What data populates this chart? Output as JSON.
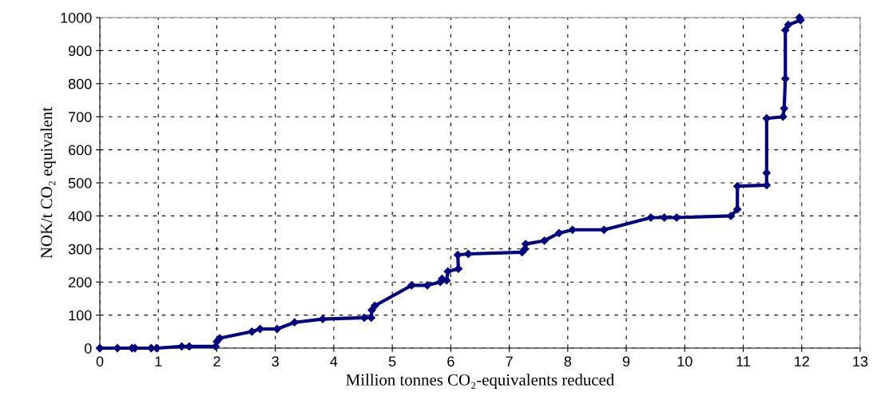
{
  "chart_data": {
    "type": "line",
    "xlabel": "Million tonnes CO₂-equivalents reduced",
    "ylabel": "NOK/t CO₂ equivalent",
    "xlim": [
      0,
      13
    ],
    "ylim": [
      0,
      1000
    ],
    "xticks": [
      0,
      1,
      2,
      3,
      4,
      5,
      6,
      7,
      8,
      9,
      10,
      11,
      12,
      13
    ],
    "yticks": [
      0,
      100,
      200,
      300,
      400,
      500,
      600,
      700,
      800,
      900,
      1000
    ],
    "grid": true,
    "marker": "diamond",
    "line_style": "solid",
    "series": [
      {
        "color": "#000080",
        "x": [
          0,
          0.3,
          0.55,
          0.6,
          0.88,
          0.97,
          1.4,
          1.53,
          1.98,
          2.0,
          2.05,
          2.6,
          2.74,
          3.03,
          3.33,
          3.81,
          4.52,
          4.64,
          4.65,
          4.7,
          5.33,
          5.6,
          5.82,
          5.85,
          5.93,
          5.95,
          6.13,
          6.12,
          6.3,
          7.22,
          7.27,
          7.28,
          7.6,
          7.85,
          8.08,
          8.62,
          9.42,
          9.65,
          9.86,
          10.79,
          10.9,
          10.9,
          11.4,
          11.4,
          11.4,
          11.68,
          11.7,
          11.72,
          11.72,
          11.77,
          11.98,
          11.96
        ],
        "values": [
          0,
          0,
          0,
          0,
          0,
          0,
          5,
          5,
          5,
          20,
          30,
          50,
          58,
          58,
          78,
          88,
          92,
          92,
          115,
          128,
          190,
          190,
          200,
          210,
          205,
          232,
          240,
          282,
          285,
          290,
          300,
          315,
          325,
          348,
          358,
          358,
          395,
          395,
          395,
          400,
          420,
          490,
          493,
          530,
          695,
          700,
          725,
          815,
          962,
          978,
          992,
          1000
        ]
      }
    ]
  }
}
